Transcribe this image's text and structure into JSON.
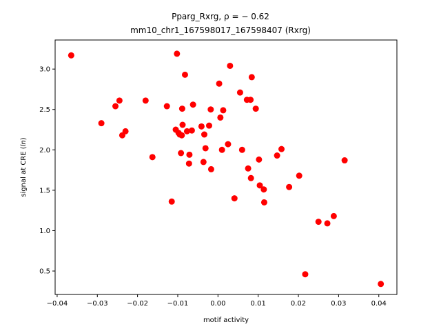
{
  "chart_data": {
    "type": "scatter",
    "title_line1": "Pparg_Rxrg, ρ = − 0.62",
    "title_line2": "mm10_chr1_167598017_167598407 (Rxrg)",
    "xlabel": "motif activity",
    "ylabel": "signal at CRE (ln)",
    "ylabel_prefix": "signal at CRE (",
    "ylabel_italic": "ln",
    "ylabel_suffix": ")",
    "xlim": [
      -0.0405,
      0.0445
    ],
    "ylim": [
      0.21,
      3.36
    ],
    "x_ticks": [
      -0.04,
      -0.03,
      -0.02,
      -0.01,
      0.0,
      0.01,
      0.02,
      0.03,
      0.04
    ],
    "x_tick_labels": [
      "−0.04",
      "−0.03",
      "−0.02",
      "−0.01",
      "0.00",
      "0.01",
      "0.02",
      "0.03",
      "0.04"
    ],
    "y_ticks": [
      0.5,
      1.0,
      1.5,
      2.0,
      2.5,
      3.0
    ],
    "y_tick_labels": [
      "0.5",
      "1.0",
      "1.5",
      "2.0",
      "2.5",
      "3.0"
    ],
    "grid": false,
    "legend": "none",
    "point_color": "#ff0000",
    "points": [
      [
        -0.0365,
        3.17
      ],
      [
        -0.029,
        2.33
      ],
      [
        -0.0255,
        2.54
      ],
      [
        -0.0245,
        2.61
      ],
      [
        -0.0238,
        2.18
      ],
      [
        -0.023,
        2.23
      ],
      [
        -0.018,
        2.61
      ],
      [
        -0.0163,
        1.91
      ],
      [
        -0.0127,
        2.54
      ],
      [
        -0.0115,
        1.36
      ],
      [
        -0.0105,
        2.25
      ],
      [
        -0.0102,
        3.19
      ],
      [
        -0.0098,
        2.21
      ],
      [
        -0.0095,
        2.19
      ],
      [
        -0.0092,
        1.96
      ],
      [
        -0.009,
        2.18
      ],
      [
        -0.0089,
        2.51
      ],
      [
        -0.0088,
        2.31
      ],
      [
        -0.0082,
        2.93
      ],
      [
        -0.0077,
        2.23
      ],
      [
        -0.0072,
        1.83
      ],
      [
        -0.0071,
        1.94
      ],
      [
        -0.0065,
        2.24
      ],
      [
        -0.0062,
        2.56
      ],
      [
        -0.0041,
        2.29
      ],
      [
        -0.0036,
        1.85
      ],
      [
        -0.0034,
        2.19
      ],
      [
        -0.0031,
        2.02
      ],
      [
        -0.0022,
        2.3
      ],
      [
        -0.0018,
        2.5
      ],
      [
        -0.0017,
        1.76
      ],
      [
        0.0003,
        2.82
      ],
      [
        0.0006,
        2.4
      ],
      [
        0.001,
        2.0
      ],
      [
        0.0013,
        2.49
      ],
      [
        0.0025,
        2.07
      ],
      [
        0.003,
        3.04
      ],
      [
        0.0041,
        1.4
      ],
      [
        0.0055,
        2.71
      ],
      [
        0.006,
        2.0
      ],
      [
        0.0072,
        2.62
      ],
      [
        0.0075,
        1.77
      ],
      [
        0.0081,
        2.62
      ],
      [
        0.0082,
        1.65
      ],
      [
        0.0084,
        2.9
      ],
      [
        0.0094,
        2.51
      ],
      [
        0.0102,
        1.88
      ],
      [
        0.0104,
        1.56
      ],
      [
        0.0114,
        1.51
      ],
      [
        0.0115,
        1.35
      ],
      [
        0.0147,
        1.93
      ],
      [
        0.0158,
        2.01
      ],
      [
        0.0177,
        1.54
      ],
      [
        0.0202,
        1.68
      ],
      [
        0.0217,
        0.46
      ],
      [
        0.025,
        1.11
      ],
      [
        0.0272,
        1.09
      ],
      [
        0.0288,
        1.18
      ],
      [
        0.0315,
        1.87
      ],
      [
        0.0405,
        0.34
      ]
    ]
  }
}
